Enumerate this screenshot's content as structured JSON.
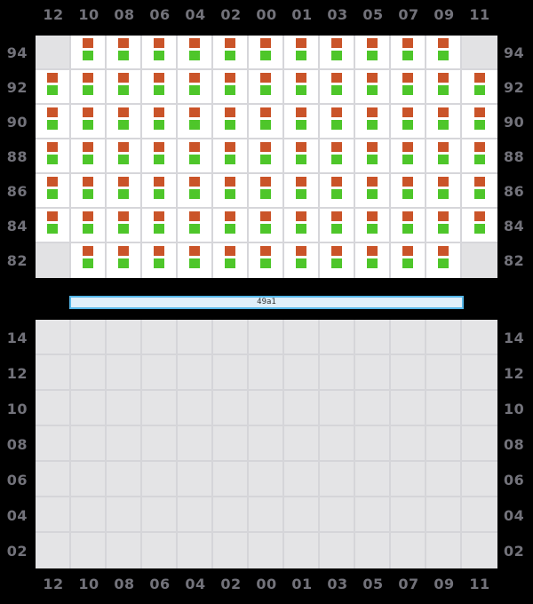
{
  "palette": {
    "bg": "#000000",
    "label": "#72727a",
    "cell_filled": "#ffffff",
    "cell_empty": "#e2e2e4",
    "line_upper": "#d6d6da",
    "cell_lower": "#e4e4e6",
    "line_lower": "#d5d5d9",
    "sq_top": "#ca5429",
    "sq_bottom": "#4ec62a",
    "bar_fill": "#dfeffa",
    "bar_border": "#55b6e8",
    "bar_text": "#333333"
  },
  "top_axis": {
    "column_labels": [
      "12",
      "10",
      "08",
      "06",
      "04",
      "02",
      "00",
      "01",
      "03",
      "05",
      "07",
      "09",
      "11"
    ]
  },
  "bottom_axis": {
    "column_labels": [
      "12",
      "10",
      "08",
      "06",
      "04",
      "02",
      "00",
      "01",
      "03",
      "05",
      "07",
      "09",
      "11"
    ]
  },
  "upper_grid": {
    "row_labels": [
      "94",
      "92",
      "90",
      "88",
      "86",
      "84",
      "82"
    ],
    "occupancy": [
      [
        0,
        1,
        1,
        1,
        1,
        1,
        1,
        1,
        1,
        1,
        1,
        1,
        0
      ],
      [
        1,
        1,
        1,
        1,
        1,
        1,
        1,
        1,
        1,
        1,
        1,
        1,
        1
      ],
      [
        1,
        1,
        1,
        1,
        1,
        1,
        1,
        1,
        1,
        1,
        1,
        1,
        1
      ],
      [
        1,
        1,
        1,
        1,
        1,
        1,
        1,
        1,
        1,
        1,
        1,
        1,
        1
      ],
      [
        1,
        1,
        1,
        1,
        1,
        1,
        1,
        1,
        1,
        1,
        1,
        1,
        1
      ],
      [
        1,
        1,
        1,
        1,
        1,
        1,
        1,
        1,
        1,
        1,
        1,
        1,
        1
      ],
      [
        0,
        1,
        1,
        1,
        1,
        1,
        1,
        1,
        1,
        1,
        1,
        1,
        0
      ]
    ]
  },
  "bar": {
    "label": "49a1"
  },
  "lower_grid": {
    "row_labels": [
      "14",
      "12",
      "10",
      "08",
      "06",
      "04",
      "02"
    ],
    "columns": 13,
    "occupancy_note": "all cells empty"
  }
}
